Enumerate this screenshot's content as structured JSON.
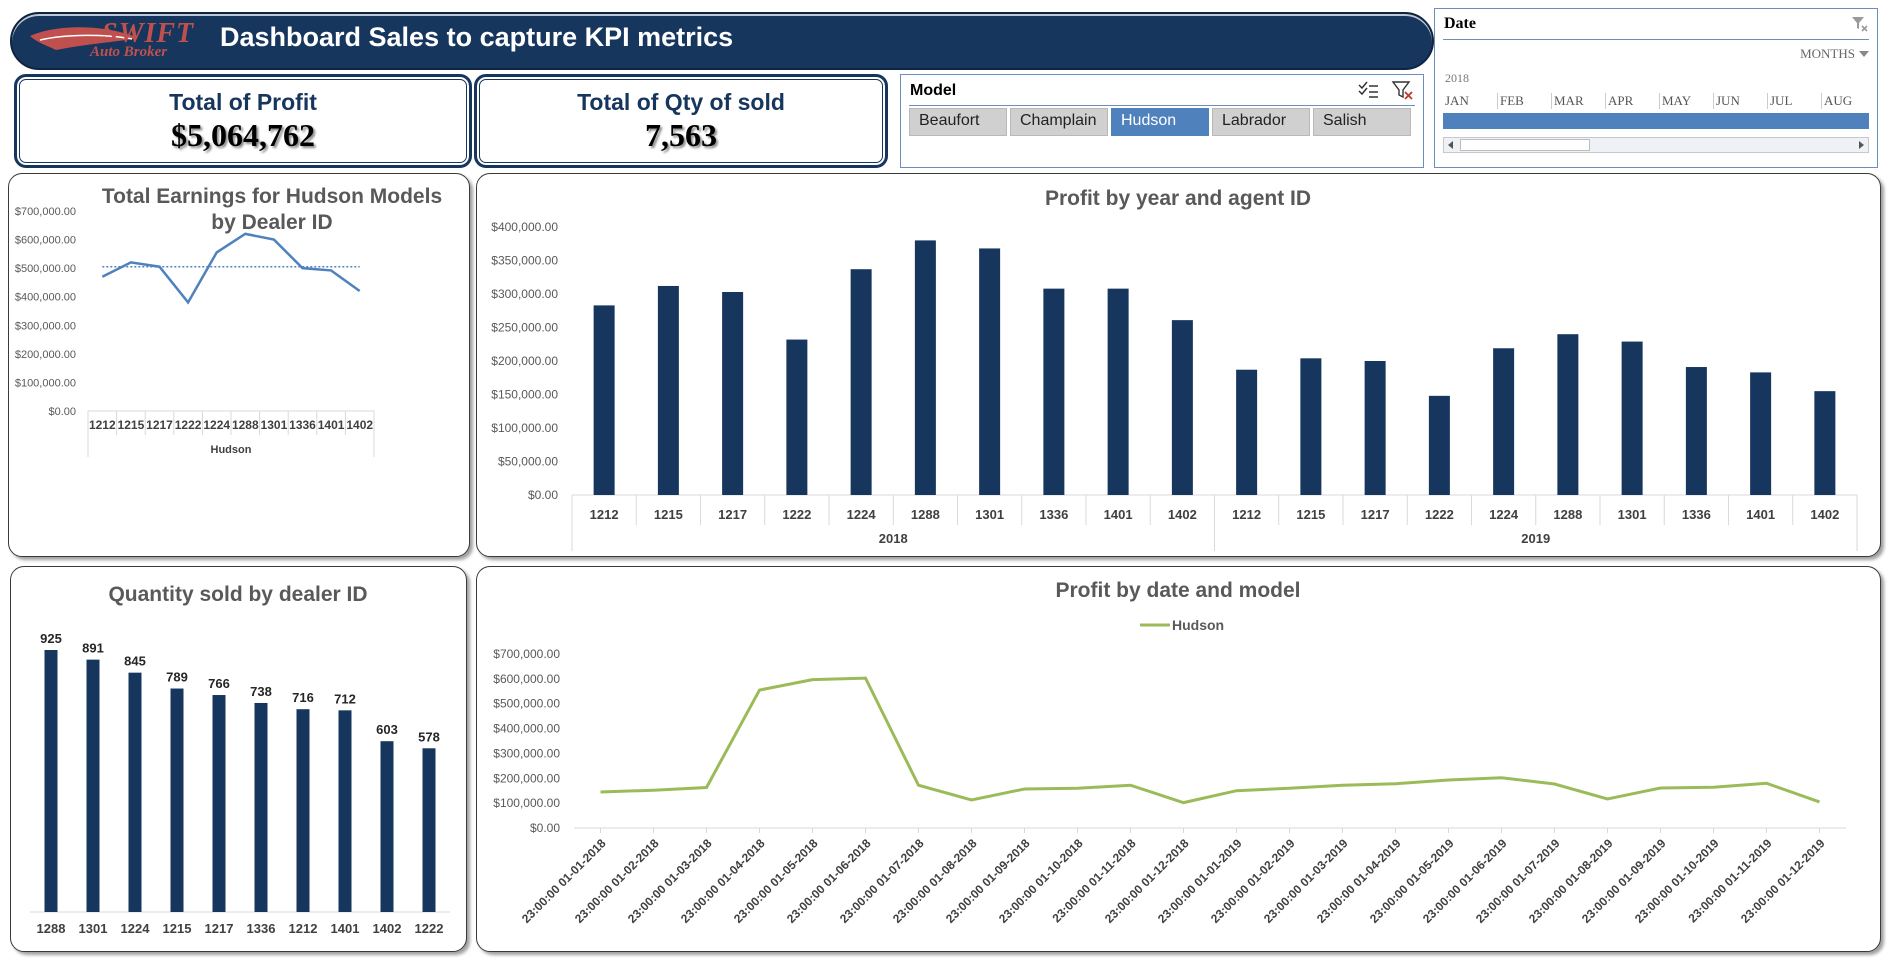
{
  "logo": {
    "brand": "SWIFT",
    "sub": "Auto Broker"
  },
  "banner": {
    "title": "Dashboard Sales to capture KPI metrics"
  },
  "kpis": {
    "profit": {
      "label": "Total of Profit",
      "value": "$5,064,762"
    },
    "qty": {
      "label": "Total of Qty of sold",
      "value": "7,563"
    }
  },
  "model_slicer": {
    "title": "Model",
    "items": [
      {
        "label": "Beaufort",
        "selected": false
      },
      {
        "label": "Champlain",
        "selected": false
      },
      {
        "label": "Hudson",
        "selected": true
      },
      {
        "label": "Labrador",
        "selected": false
      },
      {
        "label": "Salish",
        "selected": false
      }
    ]
  },
  "date_slicer": {
    "title": "Date",
    "period": "MONTHS",
    "year": "2018",
    "months": [
      "JAN",
      "FEB",
      "MAR",
      "APR",
      "MAY",
      "JUN",
      "JUL",
      "AUG"
    ]
  },
  "icons": {
    "multi_select": "multi-select-icon",
    "clear_filter": "clear-filter-icon",
    "scroll_left": "left-arrow-icon",
    "scroll_right": "right-arrow-icon"
  },
  "colors": {
    "navy": "#17365d",
    "bar": "#17365d",
    "line_blue": "#4f81bd",
    "line_green": "#9bbb59",
    "selected": "#4f81bd"
  },
  "chart_data": [
    {
      "type": "line",
      "title": "Total Earnings for Hudson Models by Dealer ID",
      "categories": [
        "1212",
        "1215",
        "1217",
        "1222",
        "1224",
        "1288",
        "1301",
        "1336",
        "1401",
        "1402"
      ],
      "group_label": "Hudson",
      "values": [
        470000,
        520000,
        505000,
        380000,
        555000,
        620000,
        600000,
        500000,
        492000,
        420000
      ],
      "average_line": 505000,
      "ylim": [
        0,
        700000
      ],
      "yticks": [
        "$0.00",
        "$100,000.00",
        "$200,000.00",
        "$300,000.00",
        "$400,000.00",
        "$500,000.00",
        "$600,000.00",
        "$700,000.00"
      ]
    },
    {
      "type": "bar",
      "title": "Profit by year and agent ID",
      "groups": [
        {
          "label": "2018",
          "categories": [
            "1212",
            "1215",
            "1217",
            "1222",
            "1224",
            "1288",
            "1301",
            "1336",
            "1401",
            "1402"
          ],
          "values": [
            283000,
            312000,
            303000,
            232000,
            337000,
            380000,
            368000,
            308000,
            308000,
            261000
          ]
        },
        {
          "label": "2019",
          "categories": [
            "1212",
            "1215",
            "1217",
            "1222",
            "1224",
            "1288",
            "1301",
            "1336",
            "1401",
            "1402"
          ],
          "values": [
            187000,
            204000,
            200000,
            148000,
            219000,
            240000,
            229000,
            191000,
            183000,
            155000
          ]
        }
      ],
      "ylim": [
        0,
        400000
      ],
      "yticks": [
        "$0.00",
        "$50,000.00",
        "$100,000.00",
        "$150,000.00",
        "$200,000.00",
        "$250,000.00",
        "$300,000.00",
        "$350,000.00",
        "$400,000.00"
      ]
    },
    {
      "type": "bar",
      "title": "Quantity sold by dealer ID",
      "categories": [
        "1288",
        "1301",
        "1224",
        "1215",
        "1217",
        "1336",
        "1212",
        "1401",
        "1402",
        "1222"
      ],
      "values": [
        925,
        891,
        845,
        789,
        766,
        738,
        716,
        712,
        603,
        578
      ],
      "data_labels": [
        "925",
        "891",
        "845",
        "789",
        "766",
        "738",
        "716",
        "712",
        "603",
        "578"
      ],
      "ylim": [
        0,
        1000
      ]
    },
    {
      "type": "line",
      "title": "Profit by date and model",
      "legend": "Hudson",
      "categories": [
        "23:00:00 01-01-2018",
        "23:00:00 01-02-2018",
        "23:00:00 01-03-2018",
        "23:00:00 01-04-2018",
        "23:00:00 01-05-2018",
        "23:00:00 01-06-2018",
        "23:00:00 01-07-2018",
        "23:00:00 01-08-2018",
        "23:00:00 01-09-2018",
        "23:00:00 01-10-2018",
        "23:00:00 01-11-2018",
        "23:00:00 01-12-2018",
        "23:00:00 01-01-2019",
        "23:00:00 01-02-2019",
        "23:00:00 01-03-2019",
        "23:00:00 01-04-2019",
        "23:00:00 01-05-2019",
        "23:00:00 01-06-2019",
        "23:00:00 01-07-2019",
        "23:00:00 01-08-2019",
        "23:00:00 01-09-2019",
        "23:00:00 01-10-2019",
        "23:00:00 01-11-2019",
        "23:00:00 01-12-2019"
      ],
      "values": [
        145000,
        152000,
        163000,
        555000,
        597000,
        603000,
        172000,
        113000,
        157000,
        160000,
        172000,
        102000,
        150000,
        160000,
        172000,
        178000,
        193000,
        202000,
        177000,
        117000,
        161000,
        164000,
        180000,
        105000
      ],
      "ylim": [
        0,
        700000
      ],
      "yticks": [
        "$0.00",
        "$100,000.00",
        "$200,000.00",
        "$300,000.00",
        "$400,000.00",
        "$500,000.00",
        "$600,000.00",
        "$700,000.00"
      ]
    }
  ]
}
